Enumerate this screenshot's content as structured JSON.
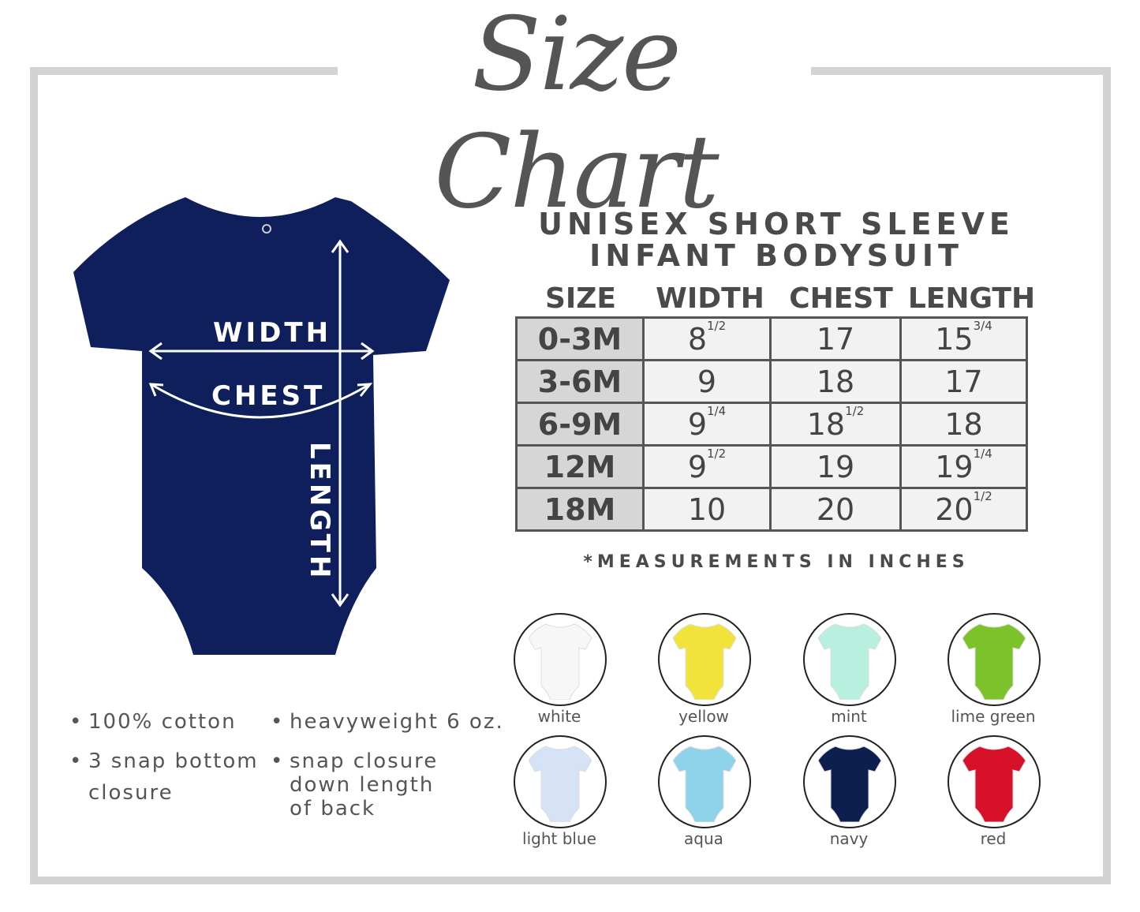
{
  "title": "Size Chart",
  "table": {
    "title_line1": "UNISEX SHORT SLEEVE",
    "title_line2": "INFANT BODYSUIT",
    "headers": [
      "SIZE",
      "WIDTH",
      "CHEST",
      "LENGTH"
    ],
    "rows": [
      {
        "size": "0-3M",
        "width": {
          "n": "8",
          "f": "1/2"
        },
        "chest": {
          "n": "17",
          "f": ""
        },
        "length": {
          "n": "15",
          "f": "3/4"
        }
      },
      {
        "size": "3-6M",
        "width": {
          "n": "9",
          "f": ""
        },
        "chest": {
          "n": "18",
          "f": ""
        },
        "length": {
          "n": "17",
          "f": ""
        }
      },
      {
        "size": "6-9M",
        "width": {
          "n": "9",
          "f": "1/4"
        },
        "chest": {
          "n": "18",
          "f": "1/2"
        },
        "length": {
          "n": "18",
          "f": ""
        }
      },
      {
        "size": "12M",
        "width": {
          "n": "9",
          "f": "1/2"
        },
        "chest": {
          "n": "19",
          "f": ""
        },
        "length": {
          "n": "19",
          "f": "1/4"
        }
      },
      {
        "size": "18M",
        "width": {
          "n": "10",
          "f": ""
        },
        "chest": {
          "n": "20",
          "f": ""
        },
        "length": {
          "n": "20",
          "f": "1/2"
        }
      }
    ],
    "note": "*MEASUREMENTS IN INCHES"
  },
  "diagram": {
    "width_label": "WIDTH",
    "chest_label": "CHEST",
    "length_label": "LENGTH",
    "garment_color": "#0f1f5c"
  },
  "features": [
    {
      "lines": [
        "100% cotton"
      ]
    },
    {
      "lines": [
        "heavyweight 6 oz."
      ]
    },
    {
      "lines": [
        "3 snap bottom",
        "closure"
      ]
    },
    {
      "lines": [
        "snap closure",
        "down length",
        "of back"
      ]
    }
  ],
  "colors": [
    {
      "name": "white",
      "hex": "#f7f7f7"
    },
    {
      "name": "yellow",
      "hex": "#f2e33a"
    },
    {
      "name": "mint",
      "hex": "#b8f0e0"
    },
    {
      "name": "lime green",
      "hex": "#7cc22a"
    },
    {
      "name": "light blue",
      "hex": "#d6e2f5"
    },
    {
      "name": "aqua",
      "hex": "#8fd3ea"
    },
    {
      "name": "navy",
      "hex": "#0d1f4f"
    },
    {
      "name": "red",
      "hex": "#d8112a"
    }
  ]
}
